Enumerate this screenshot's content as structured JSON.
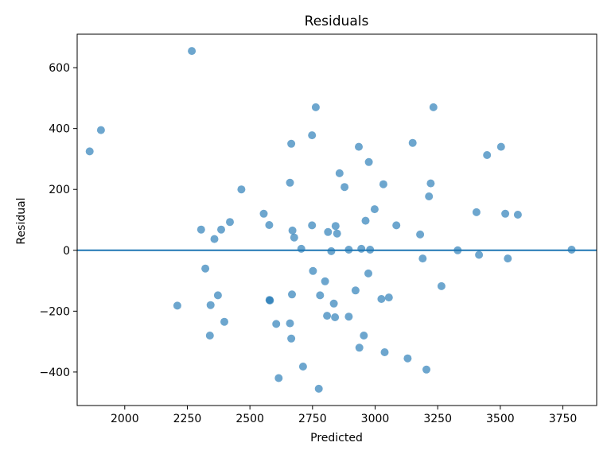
{
  "chart_data": {
    "type": "scatter",
    "title": "Residuals",
    "xlabel": "Predicted",
    "ylabel": "Residual",
    "xlim": [
      1810,
      3885
    ],
    "ylim": [
      -510,
      710
    ],
    "xticks": [
      2000,
      2250,
      2500,
      2750,
      3000,
      3250,
      3500,
      3750
    ],
    "yticks": [
      -400,
      -200,
      0,
      200,
      400,
      600
    ],
    "xtick_labels": [
      "2000",
      "2250",
      "2500",
      "2750",
      "3000",
      "3250",
      "3500",
      "3750"
    ],
    "ytick_labels": [
      "−400",
      "−200",
      "0",
      "200",
      "400",
      "600"
    ],
    "grid": false,
    "reference_line": {
      "y": 0,
      "color": "#1f77b4"
    },
    "point_color": "#1f77b4",
    "points": [
      [
        1860,
        325
      ],
      [
        1905,
        395
      ],
      [
        2210,
        -182
      ],
      [
        2268,
        655
      ],
      [
        2305,
        68
      ],
      [
        2322,
        -60
      ],
      [
        2340,
        -280
      ],
      [
        2343,
        -180
      ],
      [
        2358,
        37
      ],
      [
        2372,
        -148
      ],
      [
        2385,
        68
      ],
      [
        2398,
        -235
      ],
      [
        2420,
        93
      ],
      [
        2466,
        200
      ],
      [
        2555,
        120
      ],
      [
        2577,
        83
      ],
      [
        2578,
        -163
      ],
      [
        2580,
        -165
      ],
      [
        2605,
        -242
      ],
      [
        2615,
        -420
      ],
      [
        2660,
        222
      ],
      [
        2660,
        -240
      ],
      [
        2665,
        350
      ],
      [
        2665,
        -290
      ],
      [
        2668,
        -145
      ],
      [
        2670,
        65
      ],
      [
        2677,
        42
      ],
      [
        2705,
        5
      ],
      [
        2712,
        -382
      ],
      [
        2748,
        378
      ],
      [
        2748,
        82
      ],
      [
        2752,
        -68
      ],
      [
        2763,
        470
      ],
      [
        2775,
        -455
      ],
      [
        2780,
        -148
      ],
      [
        2800,
        -102
      ],
      [
        2808,
        -215
      ],
      [
        2812,
        60
      ],
      [
        2825,
        -3
      ],
      [
        2835,
        -175
      ],
      [
        2840,
        -220
      ],
      [
        2842,
        80
      ],
      [
        2848,
        55
      ],
      [
        2858,
        253
      ],
      [
        2878,
        208
      ],
      [
        2895,
        2
      ],
      [
        2895,
        -218
      ],
      [
        2922,
        -132
      ],
      [
        2935,
        340
      ],
      [
        2937,
        -320
      ],
      [
        2945,
        5
      ],
      [
        2955,
        -280
      ],
      [
        2962,
        97
      ],
      [
        2973,
        -76
      ],
      [
        2975,
        290
      ],
      [
        2980,
        2
      ],
      [
        2998,
        135
      ],
      [
        3025,
        -160
      ],
      [
        3033,
        217
      ],
      [
        3038,
        -335
      ],
      [
        3055,
        -155
      ],
      [
        3085,
        82
      ],
      [
        3130,
        -355
      ],
      [
        3150,
        353
      ],
      [
        3180,
        52
      ],
      [
        3190,
        -27
      ],
      [
        3205,
        -392
      ],
      [
        3215,
        177
      ],
      [
        3222,
        220
      ],
      [
        3233,
        470
      ],
      [
        3265,
        -118
      ],
      [
        3330,
        0
      ],
      [
        3405,
        125
      ],
      [
        3415,
        -15
      ],
      [
        3447,
        313
      ],
      [
        3503,
        340
      ],
      [
        3520,
        120
      ],
      [
        3530,
        -27
      ],
      [
        3570,
        117
      ],
      [
        3785,
        2
      ]
    ]
  }
}
